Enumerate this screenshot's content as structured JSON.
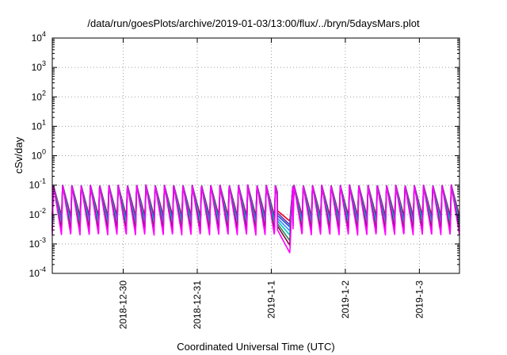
{
  "chart_data": {
    "type": "line",
    "title": "/data/run/goesPlots/archive/2019-01-03/13:00/flux/../bryn/5daysMars.plot",
    "xlabel": "Coordinated Universal Time (UTC)",
    "ylabel": "cSv/day",
    "y_scale": "log",
    "ylim": [
      0.0001,
      10000
    ],
    "y_ticks": [
      {
        "value": 0.0001,
        "base": "10",
        "exp": "-4"
      },
      {
        "value": 0.001,
        "base": "10",
        "exp": "-3"
      },
      {
        "value": 0.01,
        "base": "10",
        "exp": "-2"
      },
      {
        "value": 0.1,
        "base": "10",
        "exp": "-1"
      },
      {
        "value": 1,
        "base": "10",
        "exp": "0"
      },
      {
        "value": 10,
        "base": "10",
        "exp": "1"
      },
      {
        "value": 100,
        "base": "10",
        "exp": "2"
      },
      {
        "value": 1000,
        "base": "10",
        "exp": "3"
      },
      {
        "value": 10000,
        "base": "10",
        "exp": "4"
      }
    ],
    "xlim": [
      "2018-12-29T01:00",
      "2019-01-03T13:00"
    ],
    "x_ticks": [
      {
        "value": "2018-12-30T00:00",
        "label": "2018-12-30"
      },
      {
        "value": "2018-12-31T00:00",
        "label": "2018-12-31"
      },
      {
        "value": "2019-01-01T00:00",
        "label": "2019-1-1"
      },
      {
        "value": "2019-01-02T00:00",
        "label": "2019-1-2"
      },
      {
        "value": "2019-01-03T00:00",
        "label": "2019-1-3"
      }
    ],
    "grid": true,
    "legend": "none",
    "pattern": {
      "cycle_hours": 3,
      "peak_value": 0.1,
      "quiet_period": [
        "2019-01-01T02:00",
        "2019-01-01T07:00"
      ]
    },
    "series": [
      {
        "color": "#e8001c",
        "trough": 0.009,
        "quiet_low": 0.006
      },
      {
        "color": "#6f2da8",
        "trough": 0.0075,
        "quiet_low": 0.0045
      },
      {
        "color": "#1f4fd8",
        "trough": 0.0062,
        "quiet_low": 0.0038
      },
      {
        "color": "#3a86ff",
        "trough": 0.005,
        "quiet_low": 0.0028
      },
      {
        "color": "#00c8c8",
        "trough": 0.0041,
        "quiet_low": 0.002
      },
      {
        "color": "#2e8b57",
        "trough": 0.0033,
        "quiet_low": 0.0013
      },
      {
        "color": "#7a0a3a",
        "trough": 0.0027,
        "quiet_low": 0.0009
      },
      {
        "color": "#ff00ff",
        "trough": 0.002,
        "quiet_low": 0.0005
      }
    ]
  }
}
